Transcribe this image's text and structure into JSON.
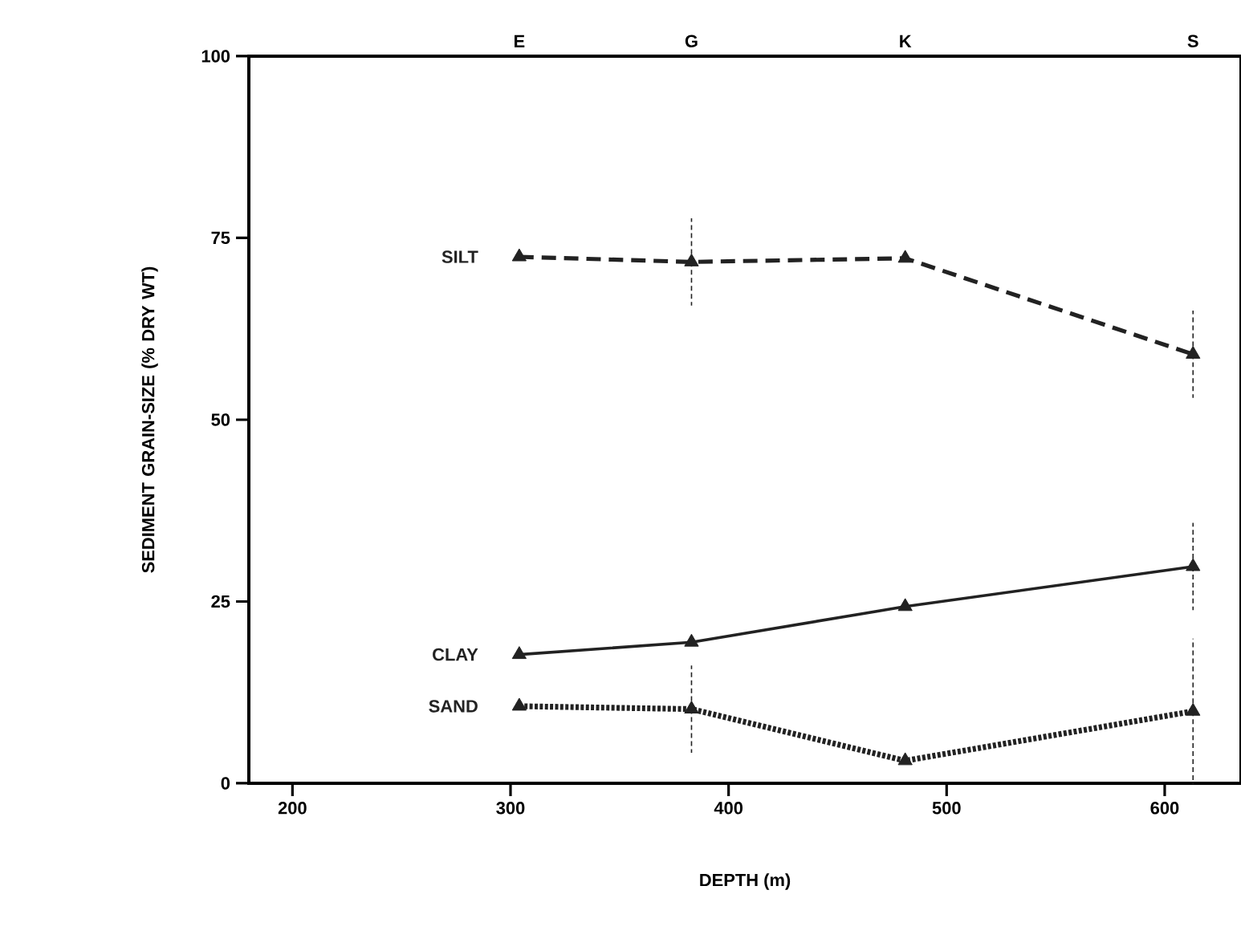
{
  "chart_data": {
    "type": "line",
    "xlabel": "DEPTH (m)",
    "ylabel": "SEDIMENT GRAIN-SIZE (% DRY WT)",
    "x": [
      304,
      383,
      481,
      613
    ],
    "xlim": [
      180,
      635
    ],
    "xticks": [
      200,
      300,
      400,
      500,
      600
    ],
    "ylim": [
      0,
      100
    ],
    "yticks": [
      0,
      25,
      50,
      75,
      100
    ],
    "annotations": [
      "E",
      "G",
      "K",
      "S"
    ],
    "marker": "triangle",
    "grid": false,
    "series": [
      {
        "name": "SILT",
        "color": "#222222",
        "line_style": "dashed",
        "values": [
          72.4,
          71.7,
          72.2,
          59
        ],
        "errors": [
          null,
          6,
          null,
          6
        ]
      },
      {
        "name": "CLAY",
        "color": "#222222",
        "line_style": "solid",
        "values": [
          17.7,
          19.4,
          24.3,
          29.8
        ],
        "errors": [
          null,
          null,
          null,
          6
        ]
      },
      {
        "name": "SAND",
        "color": "#222222",
        "line_style": "dotted",
        "values": [
          10.6,
          10.2,
          3.1,
          9.9
        ],
        "errors": [
          null,
          6,
          null,
          10
        ]
      }
    ]
  }
}
